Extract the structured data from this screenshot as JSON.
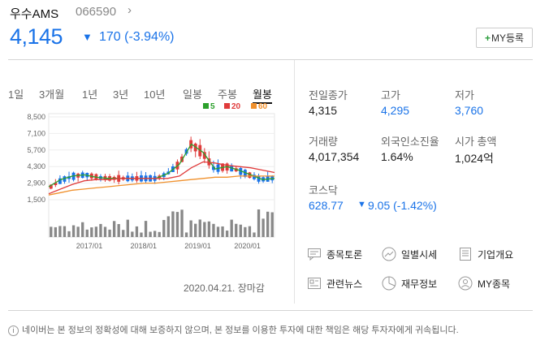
{
  "stock": {
    "name": "우수AMS",
    "code": "066590",
    "price": "4,145",
    "change": "170 (-3.94%)",
    "my_button": "MY등록"
  },
  "tabs": [
    "1일",
    "3개월",
    "1년",
    "3년",
    "10년",
    "일봉",
    "주봉",
    "월봉"
  ],
  "active_tab": "월봉",
  "legend": [
    {
      "label": "5",
      "color": "#2ca02c"
    },
    {
      "label": "20",
      "color": "#e03b3b"
    },
    {
      "label": "60",
      "color": "#f0902c"
    }
  ],
  "chart_data": {
    "type": "line",
    "y_ticks": [
      "8,500",
      "7,100",
      "5,700",
      "4,300",
      "2,900",
      "1,500"
    ],
    "x_ticks": [
      "2017/01",
      "2018/01",
      "2019/01",
      "2020/01"
    ],
    "ylim": [
      1500,
      8500
    ],
    "series": [
      {
        "name": "5",
        "color": "#2ca02c",
        "values": [
          2600,
          3200,
          3500,
          3600,
          3400,
          3300,
          3300,
          3300,
          3300,
          3300,
          3700,
          4500,
          6200,
          5500,
          4100,
          4300,
          4000,
          3600,
          3200,
          3300
        ]
      },
      {
        "name": "20",
        "color": "#e03b3b",
        "values": [
          2000,
          2400,
          2800,
          3100,
          3200,
          3200,
          3300,
          3300,
          3300,
          3300,
          3300,
          3500,
          4200,
          4700,
          4600,
          4400,
          4300,
          4200,
          4000,
          3800
        ]
      },
      {
        "name": "60",
        "color": "#f0902c",
        "values": [
          1900,
          2100,
          2300,
          2400,
          2500,
          2600,
          2700,
          2800,
          2900,
          2900,
          3000,
          3100,
          3200,
          3300,
          3400,
          3400,
          3500,
          3500,
          3500,
          3500
        ]
      }
    ]
  },
  "info": {
    "prev_close": {
      "label": "전일종가",
      "value": "4,315"
    },
    "high": {
      "label": "고가",
      "value": "4,295"
    },
    "low": {
      "label": "저가",
      "value": "3,760"
    },
    "volume": {
      "label": "거래량",
      "value": "4,017,354"
    },
    "foreign": {
      "label": "외국인소진율",
      "value": "1.64%"
    },
    "market_cap": {
      "label": "시가 총액",
      "value": "1,024억"
    },
    "kosdaq": {
      "label": "코스닥",
      "value": "628.77",
      "change": "9.05 (-1.42%)"
    }
  },
  "links": [
    "종목토론",
    "일별시세",
    "기업개요",
    "관련뉴스",
    "재무정보",
    "MY종목"
  ],
  "date": "2020.04.21. 장마감",
  "disclaimer": "네이버는 본 정보의 정확성에 대해 보증하지 않으며, 본 정보를 이용한 투자에 대한 책임은 해당 투자자에게 귀속됩니다.",
  "colors": {
    "up": "#e03b3b",
    "down": "#1a73e8",
    "accent": "#1a73e8"
  }
}
